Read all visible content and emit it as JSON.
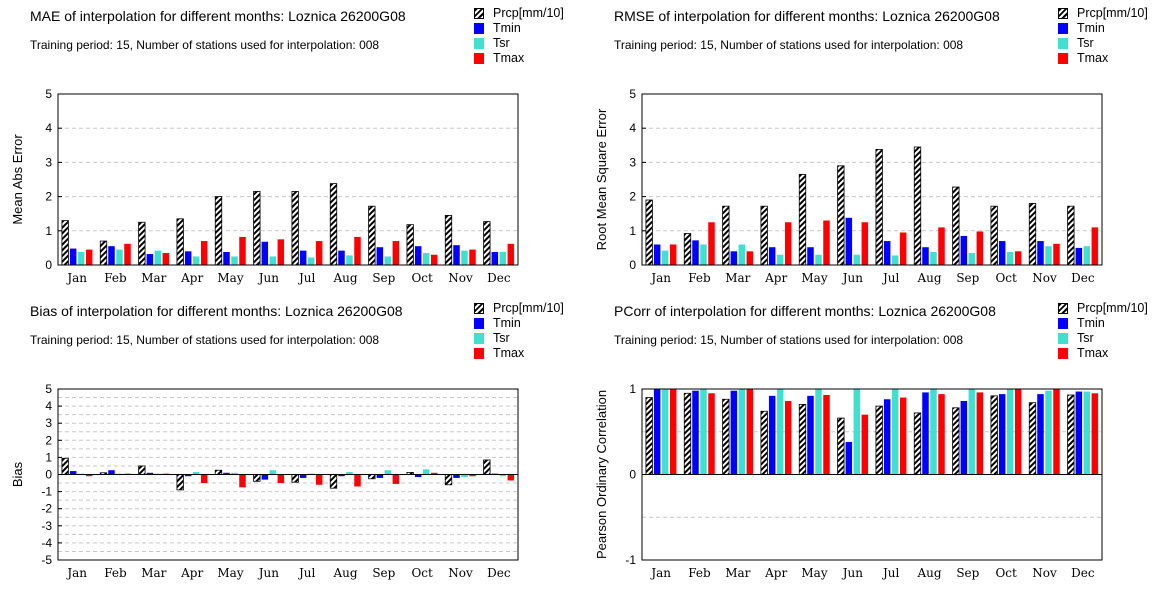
{
  "legend": [
    {
      "name": "Prcp[mm/10]",
      "key": "prcp",
      "color": "#000000"
    },
    {
      "name": "Tmin",
      "key": "tmin",
      "color": "#0000ff"
    },
    {
      "name": "Tsr",
      "key": "tsr",
      "color": "#40e0d0"
    },
    {
      "name": "Tmax",
      "key": "tmax",
      "color": "#ff0000"
    }
  ],
  "chart_data": [
    {
      "type": "bar",
      "title": "MAE of interpolation for different months: Loznica  26200G08",
      "subtitle": "Training period: 15, Number of stations used for interpolation: 008",
      "ylabel": "Mean Abs Error",
      "ylim": [
        0,
        5
      ],
      "yticks": [
        0,
        1,
        2,
        3,
        4,
        5
      ],
      "grid": "dashed-horizontal",
      "categories": [
        "Jan",
        "Feb",
        "Mar",
        "Apr",
        "May",
        "Jun",
        "Jul",
        "Aug",
        "Sep",
        "Oct",
        "Nov",
        "Dec"
      ],
      "series": [
        {
          "name": "Prcp[mm/10]",
          "values": [
            1.3,
            0.7,
            1.25,
            1.35,
            2.0,
            2.15,
            2.15,
            2.38,
            1.72,
            1.18,
            1.45,
            1.27
          ]
        },
        {
          "name": "Tmin",
          "values": [
            0.48,
            0.55,
            0.32,
            0.4,
            0.38,
            0.68,
            0.42,
            0.42,
            0.52,
            0.55,
            0.58,
            0.38
          ]
        },
        {
          "name": "Tsr",
          "values": [
            0.38,
            0.45,
            0.42,
            0.25,
            0.25,
            0.25,
            0.22,
            0.28,
            0.25,
            0.35,
            0.42,
            0.38
          ]
        },
        {
          "name": "Tmax",
          "values": [
            0.45,
            0.62,
            0.35,
            0.7,
            0.82,
            0.75,
            0.7,
            0.82,
            0.7,
            0.3,
            0.45,
            0.62
          ]
        }
      ]
    },
    {
      "type": "bar",
      "title": "RMSE of interpolation for different months: Loznica  26200G08",
      "subtitle": "Training period: 15, Number of stations used for interpolation: 008",
      "ylabel": "Root Mean Square Error",
      "ylim": [
        0,
        5
      ],
      "yticks": [
        0,
        1,
        2,
        3,
        4,
        5
      ],
      "grid": "dashed-horizontal",
      "categories": [
        "Jan",
        "Feb",
        "Mar",
        "Apr",
        "May",
        "Jun",
        "Jul",
        "Aug",
        "Sep",
        "Oct",
        "Nov",
        "Dec"
      ],
      "series": [
        {
          "name": "Prcp[mm/10]",
          "values": [
            1.9,
            0.92,
            1.72,
            1.72,
            2.65,
            2.9,
            3.38,
            3.45,
            2.28,
            1.72,
            1.8,
            1.72
          ]
        },
        {
          "name": "Tmin",
          "values": [
            0.6,
            0.72,
            0.4,
            0.52,
            0.52,
            1.38,
            0.7,
            0.52,
            0.85,
            0.7,
            0.7,
            0.5
          ]
        },
        {
          "name": "Tsr",
          "values": [
            0.42,
            0.6,
            0.6,
            0.3,
            0.3,
            0.3,
            0.28,
            0.38,
            0.35,
            0.38,
            0.55,
            0.55
          ]
        },
        {
          "name": "Tmax",
          "values": [
            0.6,
            1.25,
            0.4,
            1.25,
            1.3,
            1.25,
            0.95,
            1.1,
            0.98,
            0.4,
            0.62,
            1.1
          ]
        }
      ]
    },
    {
      "type": "bar",
      "title": "Bias of interpolation for different months: Loznica  26200G08",
      "subtitle": "Training period: 15, Number of stations used for interpolation: 008",
      "ylabel": "Bias",
      "ylim": [
        -5,
        5
      ],
      "yticks": [
        -5,
        -4,
        -3,
        -2,
        -1,
        0,
        1,
        2,
        3,
        4,
        5
      ],
      "ytickstep": 0.5,
      "grid": "dashed-horizontal",
      "categories": [
        "Jan",
        "Feb",
        "Mar",
        "Apr",
        "May",
        "Jun",
        "Jul",
        "Aug",
        "Sep",
        "Oct",
        "Nov",
        "Dec"
      ],
      "series": [
        {
          "name": "Prcp[mm/10]",
          "values": [
            0.95,
            0.1,
            0.5,
            -0.9,
            0.25,
            -0.4,
            -0.45,
            -0.8,
            -0.25,
            0.12,
            -0.6,
            0.85
          ]
        },
        {
          "name": "Tmin",
          "values": [
            0.2,
            0.25,
            0.1,
            -0.1,
            0.1,
            -0.3,
            -0.2,
            -0.1,
            -0.2,
            -0.15,
            -0.2,
            0.05
          ]
        },
        {
          "name": "Tsr",
          "values": [
            0.05,
            0.05,
            0.05,
            0.15,
            0.1,
            0.25,
            0.05,
            0.15,
            0.25,
            0.3,
            -0.15,
            -0.1
          ]
        },
        {
          "name": "Tmax",
          "values": [
            -0.1,
            0.05,
            0.05,
            -0.5,
            -0.75,
            -0.5,
            -0.6,
            -0.7,
            -0.55,
            0.1,
            -0.1,
            -0.35
          ]
        }
      ]
    },
    {
      "type": "bar",
      "title": "PCorr of interpolation for different months: Loznica  26200G08",
      "subtitle": "Training period: 15, Number of stations used for interpolation: 008",
      "ylabel": "Pearson Ordinary Correlation",
      "ylim": [
        -1,
        1
      ],
      "yticks": [
        -1,
        0,
        1
      ],
      "ytickstep": 0.5,
      "grid": "dashed-horizontal",
      "categories": [
        "Jan",
        "Feb",
        "Mar",
        "Apr",
        "May",
        "Jun",
        "Jul",
        "Aug",
        "Sep",
        "Oct",
        "Nov",
        "Dec"
      ],
      "series": [
        {
          "name": "Prcp[mm/10]",
          "values": [
            0.9,
            0.95,
            0.88,
            0.74,
            0.82,
            0.66,
            0.8,
            0.72,
            0.78,
            0.92,
            0.84,
            0.93
          ]
        },
        {
          "name": "Tmin",
          "values": [
            1.0,
            0.98,
            0.98,
            0.92,
            0.92,
            0.38,
            0.88,
            0.96,
            0.86,
            0.94,
            0.94,
            0.97
          ]
        },
        {
          "name": "Tsr",
          "values": [
            1.0,
            1.0,
            1.0,
            1.0,
            1.0,
            1.0,
            1.0,
            1.0,
            1.0,
            1.0,
            0.98,
            0.97
          ]
        },
        {
          "name": "Tmax",
          "values": [
            1.0,
            0.95,
            1.0,
            0.86,
            0.93,
            0.7,
            0.9,
            0.94,
            0.96,
            1.0,
            1.0,
            0.95
          ]
        }
      ]
    }
  ]
}
